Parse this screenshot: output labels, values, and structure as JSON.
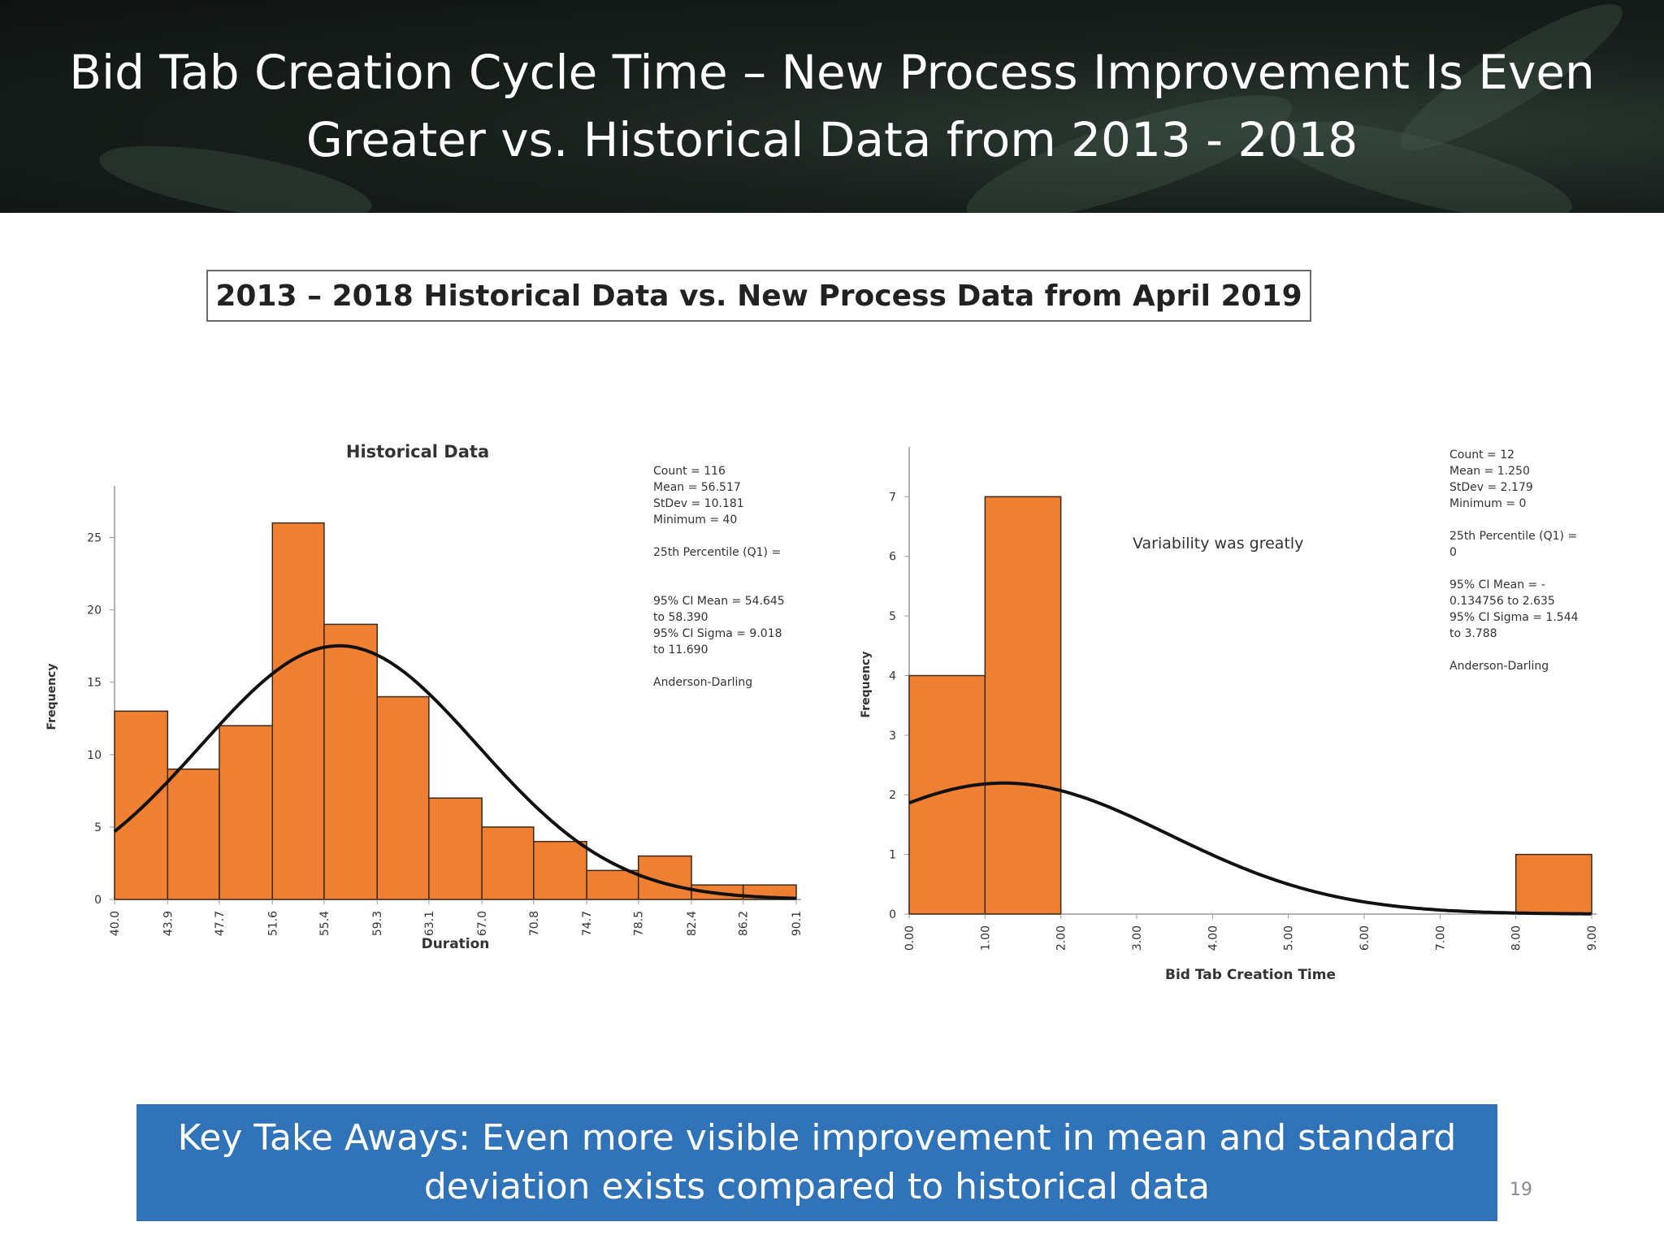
{
  "slide": {
    "title": "Bid Tab Creation Cycle Time – New Process Improvement Is Even Greater vs. Historical Data from 2013 - 2018",
    "subtitle": "2013 – 2018 Historical Data vs. New Process Data from April 2019",
    "takeaway": "Key Take Aways:  Even more visible improvement in mean and standard deviation exists compared to historical data",
    "page_number": "19",
    "colors": {
      "banner": "#18201c",
      "bar": "#ee7f33",
      "curve": "#111111",
      "takeaway": "#3173b9"
    }
  },
  "chart_data": [
    {
      "type": "bar",
      "subtype": "histogram with fitted normal curve",
      "title": "Historical Data",
      "xlabel": "Duration",
      "ylabel": "Frequency",
      "bin_edges": [
        40.0,
        43.9,
        47.7,
        51.6,
        55.4,
        59.3,
        63.1,
        67.0,
        70.8,
        74.7,
        78.5,
        82.4,
        86.2,
        90.1
      ],
      "x_tick_labels": [
        "40.0",
        "43.9",
        "47.7",
        "51.6",
        "55.4",
        "59.3",
        "63.1",
        "67.0",
        "70.8",
        "74.7",
        "78.5",
        "82.4",
        "86.2",
        "90.1"
      ],
      "values": [
        13,
        9,
        12,
        26,
        19,
        14,
        7,
        5,
        4,
        2,
        3,
        1,
        1
      ],
      "ylim": [
        0,
        28
      ],
      "y_ticks": [
        0,
        5,
        10,
        15,
        20,
        25
      ],
      "normal_fit": {
        "mean": 56.517,
        "stdev": 10.181,
        "count": 116
      },
      "stats_text": [
        "Count = 116",
        "Mean = 56.517",
        "StDev = 10.181",
        "Minimum = 40",
        "",
        "25th Percentile (Q1) =",
        "",
        "",
        "95% CI Mean = 54.645",
        "to 58.390",
        "95% CI Sigma = 9.018",
        "to 11.690",
        "",
        "Anderson-Darling"
      ]
    },
    {
      "type": "bar",
      "subtype": "histogram with fitted normal curve",
      "title": "",
      "xlabel": "Bid Tab Creation Time",
      "ylabel": "Frequency",
      "bin_edges": [
        0,
        1,
        2,
        3,
        4,
        5,
        6,
        7,
        8,
        9
      ],
      "x_tick_labels": [
        "0.00",
        "1.00",
        "2.00",
        "3.00",
        "4.00",
        "5.00",
        "6.00",
        "7.00",
        "8.00",
        "9.00"
      ],
      "values": [
        4,
        7,
        0,
        0,
        0,
        0,
        0,
        0,
        1
      ],
      "ylim": [
        0,
        7.7
      ],
      "y_ticks": [
        0,
        1,
        2,
        3,
        4,
        5,
        6,
        7
      ],
      "normal_fit": {
        "mean": 1.25,
        "stdev": 2.179,
        "count": 12
      },
      "annotation": "Variability was greatly",
      "stats_text": [
        "Count = 12",
        "Mean = 1.250",
        "StDev = 2.179",
        "Minimum = 0",
        "",
        "25th Percentile (Q1) =",
        "0",
        "",
        "95% CI Mean = -",
        "0.134756 to 2.635",
        "95% CI Sigma = 1.544",
        "to 3.788",
        "",
        "Anderson-Darling"
      ]
    }
  ]
}
